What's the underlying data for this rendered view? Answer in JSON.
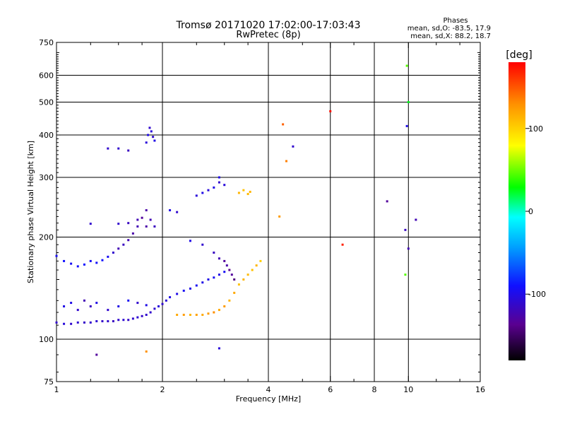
{
  "chart_data": {
    "type": "scatter",
    "title": "Tromsø 20171020 17:02:00-17:03:43",
    "subtitle": "RwPretec (8p)",
    "xlabel": "Frequency [MHz]",
    "ylabel": "Stationary phase Virtual Height [km]",
    "x_scale": "log2",
    "y_scale": "log",
    "xlim": [
      1,
      16
    ],
    "ylim": [
      75,
      750
    ],
    "x_ticks": [
      1,
      2,
      4,
      6,
      8,
      10,
      16
    ],
    "x_grid": [
      2,
      4,
      6,
      8,
      10
    ],
    "y_ticks": [
      75,
      100,
      200,
      300,
      400,
      500,
      600,
      750
    ],
    "y_grid": [
      100,
      200,
      300,
      400,
      500,
      600
    ],
    "grid": true,
    "legend": {
      "title": "Phases",
      "lines": [
        "mean, sd,O: -83.5, 17.9",
        "mean, sd,X:  88.2, 18.7"
      ]
    },
    "colorbar": {
      "label": "[deg]",
      "range": [
        -180,
        180
      ],
      "ticks": [
        100,
        0,
        -100
      ],
      "colormap": [
        "#000000",
        "#5a0090",
        "#1010ff",
        "#00a0ff",
        "#00ffff",
        "#00ff00",
        "#ffff00",
        "#ff9000",
        "#ff0000"
      ]
    },
    "series": [
      {
        "points": [
          [
            1.0,
            112,
            -110
          ],
          [
            1.05,
            111,
            -105
          ],
          [
            1.1,
            111,
            -110
          ],
          [
            1.15,
            112,
            -108
          ],
          [
            1.2,
            112,
            -112
          ],
          [
            1.25,
            112,
            -110
          ],
          [
            1.3,
            113,
            -108
          ],
          [
            1.35,
            113,
            -112
          ],
          [
            1.4,
            113,
            -110
          ],
          [
            1.45,
            113,
            -115
          ],
          [
            1.5,
            114,
            -110
          ],
          [
            1.55,
            114,
            -108
          ],
          [
            1.6,
            114,
            -112
          ],
          [
            1.65,
            115,
            -110
          ],
          [
            1.7,
            116,
            -108
          ],
          [
            1.75,
            117,
            -112
          ],
          [
            1.8,
            118,
            -110
          ],
          [
            1.85,
            120,
            -110
          ],
          [
            1.9,
            123,
            -108
          ],
          [
            1.95,
            125,
            -105
          ],
          [
            2.0,
            127,
            -110
          ],
          [
            2.05,
            130,
            -105
          ],
          [
            2.1,
            133,
            -100
          ],
          [
            2.2,
            136,
            -100
          ],
          [
            2.3,
            139,
            -95
          ],
          [
            2.4,
            141,
            -100
          ],
          [
            2.5,
            144,
            -95
          ],
          [
            2.6,
            147,
            -100
          ],
          [
            2.7,
            150,
            -100
          ],
          [
            2.8,
            152,
            -95
          ],
          [
            2.9,
            155,
            -100
          ],
          [
            3.0,
            158,
            -95
          ],
          [
            1.0,
            176,
            -95
          ],
          [
            1.05,
            170,
            -90
          ],
          [
            1.1,
            167,
            -95
          ],
          [
            1.15,
            164,
            -92
          ],
          [
            1.2,
            166,
            -90
          ],
          [
            1.25,
            170,
            -95
          ],
          [
            1.3,
            168,
            -92
          ],
          [
            1.35,
            171,
            -90
          ],
          [
            1.4,
            175,
            -95
          ],
          [
            1.45,
            180,
            -110
          ],
          [
            1.5,
            185,
            -120
          ],
          [
            1.55,
            190,
            -115
          ],
          [
            1.6,
            196,
            -120
          ],
          [
            1.65,
            205,
            -125
          ],
          [
            1.7,
            215,
            -120
          ],
          [
            1.75,
            228,
            -130
          ],
          [
            1.8,
            240,
            -125
          ],
          [
            1.85,
            225,
            -120
          ],
          [
            1.9,
            215,
            -115
          ],
          [
            1.05,
            125,
            -100
          ],
          [
            1.1,
            128,
            -100
          ],
          [
            1.15,
            122,
            -110
          ],
          [
            1.2,
            130,
            -120
          ],
          [
            1.25,
            125,
            -115
          ],
          [
            1.3,
            128,
            -100
          ],
          [
            1.4,
            122,
            -110
          ],
          [
            1.5,
            125,
            -100
          ],
          [
            1.6,
            130,
            -95
          ],
          [
            1.7,
            128,
            -110
          ],
          [
            1.8,
            126,
            -100
          ],
          [
            1.5,
            219,
            -110
          ],
          [
            1.6,
            220,
            -115
          ],
          [
            1.7,
            225,
            -120
          ],
          [
            1.8,
            215,
            -125
          ],
          [
            1.25,
            219,
            -110
          ],
          [
            1.8,
            380,
            -105
          ],
          [
            1.82,
            400,
            -100
          ],
          [
            1.84,
            420,
            -110
          ],
          [
            1.86,
            410,
            -105
          ],
          [
            1.88,
            395,
            -110
          ],
          [
            1.9,
            385,
            -100
          ],
          [
            1.4,
            365,
            -110
          ],
          [
            1.5,
            365,
            -110
          ],
          [
            1.6,
            360,
            -115
          ],
          [
            2.5,
            265,
            -105
          ],
          [
            2.6,
            270,
            -100
          ],
          [
            2.7,
            275,
            -105
          ],
          [
            2.8,
            280,
            -100
          ],
          [
            2.9,
            290,
            -110
          ],
          [
            3.0,
            285,
            -105
          ],
          [
            2.1,
            240,
            -100
          ],
          [
            2.2,
            237,
            -110
          ],
          [
            2.4,
            195,
            -100
          ],
          [
            2.6,
            190,
            -110
          ],
          [
            2.8,
            180,
            -115
          ],
          [
            2.9,
            173,
            -120
          ],
          [
            3.0,
            170,
            -130
          ],
          [
            3.05,
            165,
            -125
          ],
          [
            3.1,
            160,
            -135
          ],
          [
            3.15,
            155,
            -130
          ],
          [
            3.2,
            150,
            -140
          ],
          [
            2.2,
            118,
            125
          ],
          [
            2.3,
            118,
            130
          ],
          [
            2.4,
            118,
            120
          ],
          [
            2.5,
            118,
            128
          ],
          [
            2.6,
            118,
            125
          ],
          [
            2.7,
            119,
            130
          ],
          [
            2.8,
            120,
            135
          ],
          [
            2.9,
            122,
            125
          ],
          [
            3.0,
            125,
            130
          ],
          [
            3.1,
            130,
            120
          ],
          [
            3.2,
            137,
            125
          ],
          [
            3.3,
            145,
            115
          ],
          [
            3.4,
            150,
            120
          ],
          [
            3.5,
            155,
            118
          ],
          [
            3.6,
            160,
            115
          ],
          [
            3.7,
            165,
            120
          ],
          [
            3.8,
            170,
            110
          ],
          [
            3.3,
            270,
            120
          ],
          [
            3.4,
            275,
            115
          ],
          [
            3.5,
            268,
            118
          ],
          [
            3.55,
            272,
            120
          ],
          [
            4.3,
            230,
            130
          ],
          [
            4.5,
            335,
            140
          ],
          [
            4.4,
            430,
            150
          ],
          [
            6.0,
            470,
            175
          ],
          [
            6.5,
            190,
            170
          ],
          [
            9.8,
            155,
            60
          ],
          [
            10.0,
            500,
            40
          ],
          [
            9.9,
            640,
            60
          ],
          [
            9.8,
            210,
            -115
          ],
          [
            10.5,
            225,
            -120
          ],
          [
            8.7,
            255,
            -130
          ],
          [
            10.0,
            185,
            -120
          ],
          [
            9.9,
            425,
            -100
          ],
          [
            4.7,
            370,
            -110
          ],
          [
            2.9,
            300,
            -100
          ],
          [
            1.3,
            90,
            -130
          ],
          [
            1.8,
            92,
            135
          ],
          [
            2.9,
            94,
            -105
          ]
        ]
      }
    ]
  }
}
